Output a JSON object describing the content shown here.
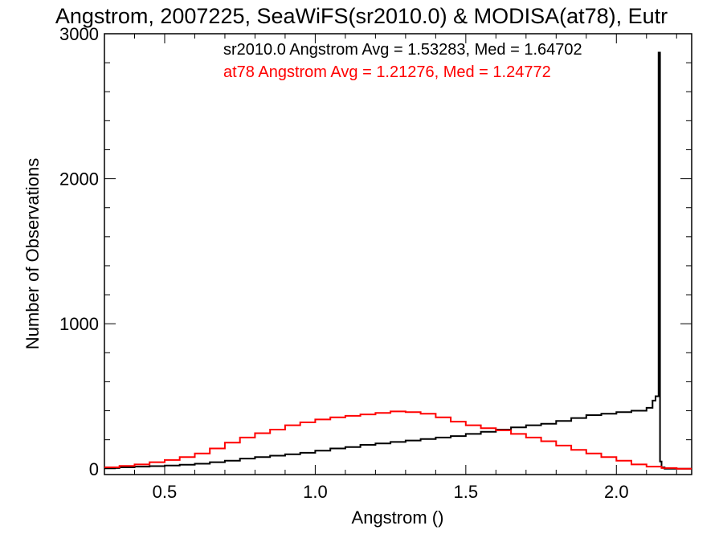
{
  "chart_data": {
    "type": "line",
    "title": "Angstrom, 2007225, SeaWiFS(sr2010.0) & MODISA(at78), Eutr",
    "xlabel": "Angstrom ()",
    "ylabel": "Number of Observations",
    "xlim": [
      0.3,
      2.25
    ],
    "ylim": [
      -40,
      3000
    ],
    "xticks": [
      0.5,
      1.0,
      1.5,
      2.0
    ],
    "xtick_labels": [
      "0.5",
      "1.0",
      "1.5",
      "2.0"
    ],
    "yticks": [
      0,
      1000,
      2000,
      3000
    ],
    "ytick_labels": [
      "0",
      "1000",
      "2000",
      "3000"
    ],
    "grid": false,
    "step": true,
    "annotations": [
      "sr2010.0 Angstrom Avg = 1.53283, Med = 1.64702",
      "at78 Angstrom Avg = 1.21276, Med = 1.24772"
    ],
    "series": [
      {
        "color": "#000000",
        "x": [
          0.3,
          0.35,
          0.4,
          0.45,
          0.5,
          0.55,
          0.6,
          0.65,
          0.7,
          0.75,
          0.8,
          0.85,
          0.9,
          0.95,
          1.0,
          1.05,
          1.1,
          1.15,
          1.2,
          1.25,
          1.3,
          1.35,
          1.4,
          1.45,
          1.5,
          1.55,
          1.6,
          1.65,
          1.7,
          1.75,
          1.8,
          1.85,
          1.9,
          1.95,
          2.0,
          2.05,
          2.08,
          2.1,
          2.12,
          2.13,
          2.14,
          2.145,
          2.15,
          2.16,
          2.17,
          2.18,
          2.25
        ],
        "y": [
          5,
          10,
          15,
          18,
          22,
          28,
          35,
          45,
          55,
          70,
          80,
          90,
          100,
          110,
          125,
          140,
          150,
          165,
          175,
          185,
          195,
          205,
          215,
          225,
          240,
          255,
          270,
          285,
          300,
          310,
          330,
          350,
          370,
          380,
          390,
          400,
          400,
          420,
          470,
          500,
          2870,
          50,
          10,
          0,
          0,
          0,
          0
        ]
      },
      {
        "color": "#ff0000",
        "x": [
          0.3,
          0.35,
          0.4,
          0.45,
          0.5,
          0.55,
          0.6,
          0.65,
          0.7,
          0.75,
          0.8,
          0.85,
          0.9,
          0.95,
          1.0,
          1.05,
          1.1,
          1.15,
          1.2,
          1.25,
          1.3,
          1.35,
          1.4,
          1.45,
          1.5,
          1.55,
          1.6,
          1.65,
          1.7,
          1.75,
          1.8,
          1.85,
          1.9,
          1.95,
          2.0,
          2.05,
          2.1,
          2.15,
          2.2,
          2.25
        ],
        "y": [
          10,
          20,
          30,
          45,
          60,
          80,
          105,
          140,
          180,
          215,
          245,
          270,
          300,
          320,
          340,
          355,
          365,
          375,
          385,
          395,
          390,
          380,
          355,
          325,
          300,
          280,
          265,
          240,
          215,
          190,
          160,
          130,
          105,
          80,
          55,
          30,
          15,
          5,
          0,
          0
        ]
      }
    ]
  }
}
